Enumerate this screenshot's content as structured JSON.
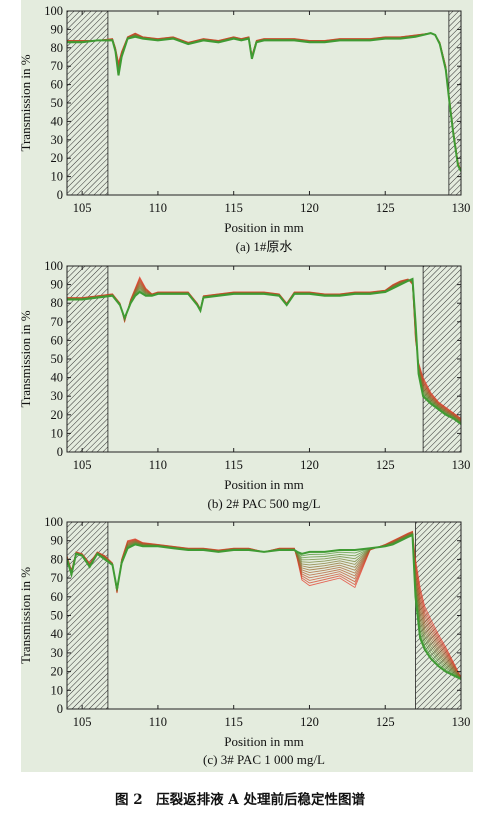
{
  "figure_caption": "图 2　压裂返排液 A 处理前后稳定性图谱",
  "colors": {
    "background": "#e4ecde",
    "early_scan": "#e53a2a",
    "late_scan": "#3f9b33",
    "hatch": "#333333"
  },
  "chart_data": [
    {
      "type": "line",
      "caption": "(a) 1#原水",
      "xlabel": "Position in mm",
      "ylabel": "Transmission in %",
      "xlim": [
        104,
        130
      ],
      "ylim": [
        0,
        100
      ],
      "xticks": [
        105,
        110,
        115,
        120,
        125,
        130
      ],
      "yticks": [
        0,
        10,
        20,
        30,
        40,
        50,
        60,
        70,
        80,
        90,
        100
      ],
      "hatched_regions": [
        [
          104,
          106.7
        ],
        [
          129.2,
          130
        ]
      ],
      "series": [
        {
          "color": "#e53a2a",
          "x": [
            104,
            105,
            106,
            107,
            107.2,
            107.4,
            107.6,
            108,
            108.5,
            109,
            110,
            111,
            112,
            113,
            114,
            115,
            115.5,
            116,
            116.2,
            116.5,
            117,
            118,
            119,
            120,
            121,
            122,
            123,
            124,
            125,
            126,
            127,
            128,
            128.3,
            128.6,
            129,
            129.2,
            129.5,
            129.8,
            130
          ],
          "y": [
            84,
            84,
            84,
            85,
            80,
            72,
            78,
            86,
            88,
            86,
            85,
            86,
            83,
            85,
            84,
            86,
            85,
            86,
            76,
            84,
            85,
            85,
            85,
            84,
            84,
            85,
            85,
            85,
            86,
            86,
            87,
            88,
            87,
            83,
            70,
            55,
            35,
            18,
            13
          ]
        },
        {
          "color": "#3f9b33",
          "x": [
            104,
            105,
            106,
            107,
            107.2,
            107.4,
            107.6,
            108,
            108.5,
            109,
            110,
            111,
            112,
            113,
            114,
            115,
            115.5,
            116,
            116.2,
            116.5,
            117,
            118,
            119,
            120,
            121,
            122,
            123,
            124,
            125,
            126,
            127,
            128,
            128.3,
            128.6,
            129,
            129.2,
            129.5,
            129.8,
            130
          ],
          "y": [
            83,
            83,
            84,
            84,
            78,
            65,
            75,
            85,
            86,
            85,
            84,
            85,
            82,
            84,
            83,
            85,
            84,
            85,
            74,
            83,
            84,
            84,
            84,
            83,
            83,
            84,
            84,
            84,
            85,
            85,
            86,
            88,
            87,
            82,
            68,
            53,
            33,
            16,
            13
          ]
        }
      ]
    },
    {
      "type": "line",
      "caption": "(b) 2# PAC 500 mg/L",
      "xlabel": "Position in mm",
      "ylabel": "Transmission in %",
      "xlim": [
        104,
        130
      ],
      "ylim": [
        0,
        100
      ],
      "xticks": [
        105,
        110,
        115,
        120,
        125,
        130
      ],
      "yticks": [
        0,
        10,
        20,
        30,
        40,
        50,
        60,
        70,
        80,
        90,
        100
      ],
      "hatched_regions": [
        [
          104,
          106.7
        ],
        [
          127.5,
          130
        ]
      ],
      "series": [
        {
          "color": "#e53a2a",
          "x": [
            104,
            105,
            106,
            107,
            107.5,
            107.8,
            108.2,
            108.5,
            108.8,
            109.2,
            109.6,
            110,
            111,
            112,
            112.6,
            112.8,
            113,
            114,
            115,
            116,
            117,
            118,
            118.5,
            119,
            120,
            121,
            122,
            123,
            124,
            125,
            125.5,
            126,
            126.5,
            126.8,
            127,
            127.2,
            127.5,
            128,
            128.5,
            129,
            129.5,
            130
          ],
          "y": [
            83,
            83,
            84,
            85,
            80,
            70,
            82,
            88,
            94,
            88,
            85,
            86,
            86,
            86,
            80,
            77,
            84,
            85,
            86,
            86,
            86,
            85,
            80,
            86,
            86,
            85,
            85,
            86,
            86,
            87,
            90,
            92,
            93,
            90,
            60,
            48,
            40,
            32,
            27,
            24,
            21,
            18
          ]
        },
        {
          "color": "#3f9b33",
          "x": [
            104,
            105,
            106,
            107,
            107.5,
            107.8,
            108.2,
            108.5,
            108.8,
            109.2,
            109.6,
            110,
            111,
            112,
            112.6,
            112.8,
            113,
            114,
            115,
            116,
            117,
            118,
            118.5,
            119,
            120,
            121,
            122,
            123,
            124,
            125,
            125.5,
            126,
            126.5,
            126.8,
            127,
            127.2,
            127.5,
            128,
            128.5,
            129,
            129.5,
            130
          ],
          "y": [
            82,
            82,
            83,
            84,
            79,
            72,
            80,
            84,
            86,
            84,
            84,
            85,
            85,
            85,
            79,
            76,
            83,
            84,
            85,
            85,
            85,
            84,
            79,
            85,
            85,
            84,
            84,
            85,
            85,
            86,
            88,
            90,
            92,
            93,
            70,
            42,
            30,
            26,
            23,
            20,
            18,
            15
          ]
        }
      ]
    },
    {
      "type": "line",
      "caption": "(c) 3# PAC 1 000 mg/L",
      "xlabel": "Position in mm",
      "ylabel": "Transmission in %",
      "xlim": [
        104,
        130
      ],
      "ylim": [
        0,
        100
      ],
      "xticks": [
        105,
        110,
        115,
        120,
        125,
        130
      ],
      "yticks": [
        0,
        10,
        20,
        30,
        40,
        50,
        60,
        70,
        80,
        90,
        100
      ],
      "hatched_regions": [
        [
          104,
          106.7
        ],
        [
          127,
          130
        ]
      ],
      "series": [
        {
          "color": "#e53a2a",
          "x": [
            104,
            104.3,
            104.6,
            105,
            105.5,
            106,
            106.5,
            107,
            107.3,
            107.6,
            108,
            108.5,
            109,
            110,
            111,
            112,
            113,
            114,
            115,
            116,
            117,
            118,
            119,
            119.2,
            119.5,
            120,
            121,
            122,
            123,
            124,
            125,
            125.5,
            126,
            126.5,
            126.8,
            127,
            127.3,
            127.6,
            128,
            128.5,
            129,
            129.5,
            130
          ],
          "y": [
            82,
            74,
            84,
            83,
            78,
            84,
            82,
            78,
            62,
            80,
            90,
            91,
            89,
            88,
            87,
            86,
            86,
            85,
            86,
            86,
            84,
            86,
            86,
            80,
            69,
            66,
            68,
            70,
            65,
            85,
            88,
            90,
            92,
            94,
            95,
            80,
            65,
            55,
            48,
            40,
            33,
            25,
            17
          ]
        },
        {
          "color": "#3f9b33",
          "x": [
            104,
            104.3,
            104.6,
            105,
            105.5,
            106,
            106.5,
            107,
            107.3,
            107.6,
            108,
            108.5,
            109,
            110,
            111,
            112,
            113,
            114,
            115,
            116,
            117,
            118,
            119,
            119.2,
            119.5,
            120,
            121,
            122,
            123,
            124,
            125,
            125.5,
            126,
            126.5,
            126.8,
            127,
            127.3,
            127.6,
            128,
            128.5,
            129,
            129.5,
            130
          ],
          "y": [
            80,
            72,
            83,
            82,
            76,
            83,
            80,
            77,
            64,
            78,
            86,
            88,
            87,
            87,
            86,
            85,
            85,
            84,
            85,
            85,
            84,
            85,
            85,
            84,
            83,
            84,
            84,
            85,
            85,
            86,
            87,
            88,
            90,
            92,
            93,
            60,
            38,
            32,
            27,
            23,
            20,
            18,
            16
          ]
        }
      ]
    }
  ]
}
